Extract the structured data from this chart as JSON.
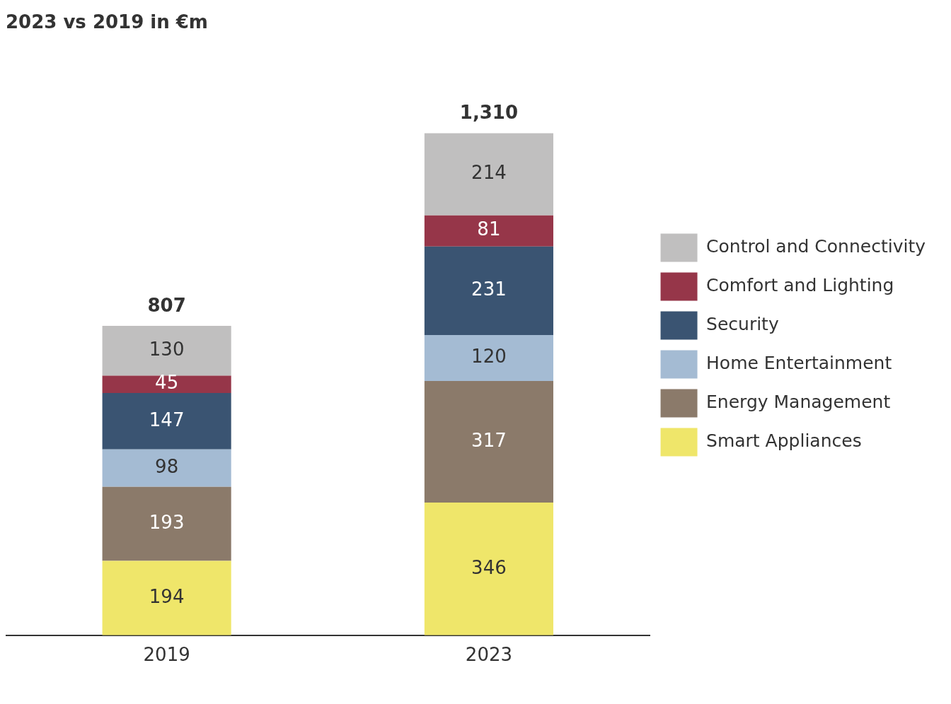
{
  "chart_data": {
    "type": "bar",
    "title": "2023 vs 2019 in €m",
    "stacked": true,
    "data_labels": true,
    "legend": "right",
    "categories": [
      "2019",
      "2023"
    ],
    "series": [
      {
        "name": "Smart Appliances",
        "color": "#efe66a",
        "values": [
          194,
          346
        ]
      },
      {
        "name": "Energy Management",
        "color": "#8b7a6a",
        "values": [
          193,
          317
        ]
      },
      {
        "name": "Home Entertainment",
        "color": "#a4bbd3",
        "values": [
          98,
          120
        ]
      },
      {
        "name": "Security",
        "color": "#3a5472",
        "values": [
          147,
          231
        ]
      },
      {
        "name": "Comfort and Lighting",
        "color": "#963649",
        "values": [
          45,
          81
        ]
      },
      {
        "name": "Control and Connectivity",
        "color": "#c0bfbf",
        "values": [
          130,
          214
        ]
      }
    ],
    "totals": [
      "807",
      "1,310"
    ]
  }
}
